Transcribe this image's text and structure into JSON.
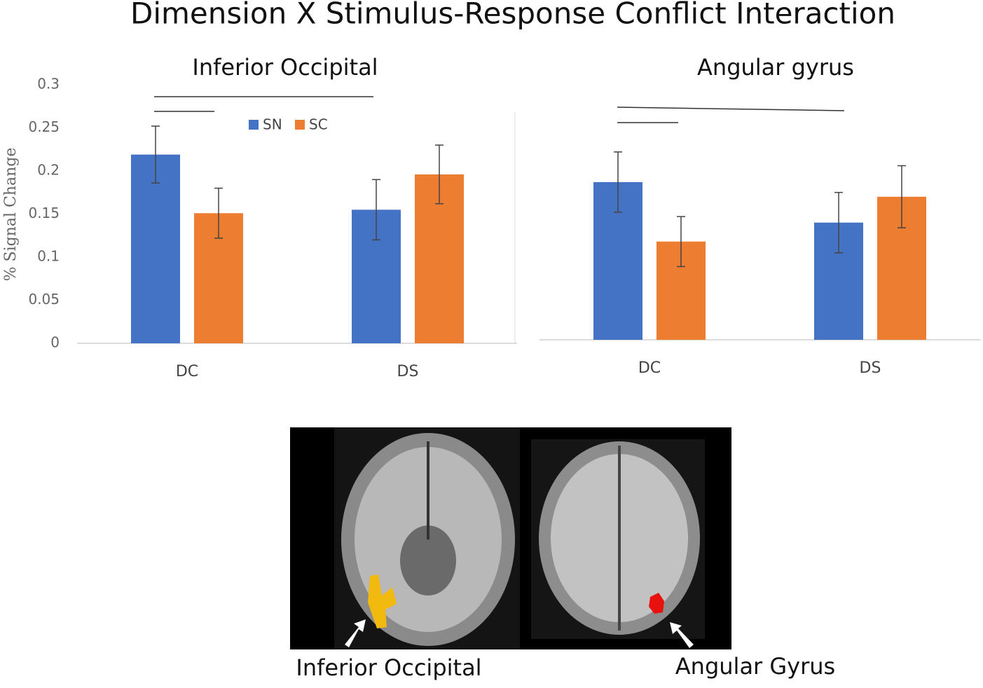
{
  "title": "Dimension X Stimulus-Response Conflict Interaction",
  "chart_data": [
    {
      "type": "bar",
      "title": "Inferior Occipital",
      "ylabel": "% Signal Change",
      "categories": [
        "DC",
        "DS"
      ],
      "series": [
        {
          "name": "SN",
          "color": "#4472c4",
          "values": [
            0.219,
            0.155
          ],
          "errors": [
            0.033,
            0.035
          ]
        },
        {
          "name": "SC",
          "color": "#ed7d31",
          "values": [
            0.151,
            0.196
          ],
          "errors": [
            0.029,
            0.034
          ]
        }
      ],
      "ylim": [
        0,
        0.3
      ],
      "yticks": [
        0,
        0.05,
        0.1,
        0.15,
        0.2,
        0.25,
        0.3
      ],
      "legend": "top"
    },
    {
      "type": "bar",
      "title": "Angular gyrus",
      "categories": [
        "DC",
        "DS"
      ],
      "series": [
        {
          "color": "#4472c4",
          "values": [
            0.183,
            0.136
          ],
          "errors": [
            0.035,
            0.035
          ]
        },
        {
          "color": "#ed7d31",
          "values": [
            0.114,
            0.166
          ],
          "errors": [
            0.029,
            0.036
          ]
        }
      ],
      "ylim": [
        0,
        0.3
      ]
    }
  ],
  "image_labels": [
    "Inferior Occipital",
    "Angular Gyrus"
  ]
}
